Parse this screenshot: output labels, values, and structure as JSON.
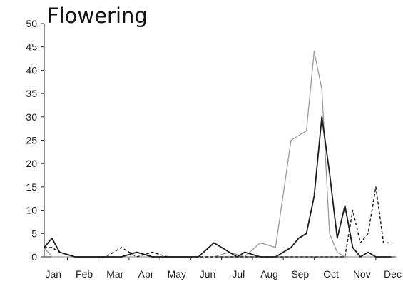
{
  "chart_data": {
    "type": "line",
    "title": "Flowering",
    "xlabel": "",
    "ylabel": "",
    "ylim": [
      0,
      50
    ],
    "yticks": [
      0,
      5,
      10,
      15,
      20,
      25,
      30,
      35,
      40,
      45,
      50
    ],
    "xlim": [
      0,
      22.5
    ],
    "month_labels": [
      {
        "label": "Jan",
        "x": 0.5
      },
      {
        "label": "Feb",
        "x": 2.5
      },
      {
        "label": "Mar",
        "x": 4.5
      },
      {
        "label": "Apr",
        "x": 6.5
      },
      {
        "label": "May",
        "x": 8.5
      },
      {
        "label": "Jun",
        "x": 10.5
      },
      {
        "label": "Jul",
        "x": 12.5
      },
      {
        "label": "Aug",
        "x": 14.5
      },
      {
        "label": "Sep",
        "x": 16.5
      },
      {
        "label": "Oct",
        "x": 18.5
      },
      {
        "label": "Nov",
        "x": 20.5
      },
      {
        "label": "Dec",
        "x": 22.5
      }
    ],
    "grid": false,
    "legend": "none",
    "series": [
      {
        "style": "grey-solid",
        "color": "#9a9a9a",
        "x": [
          0,
          0.5,
          1,
          2,
          3,
          4,
          5,
          6,
          7,
          8,
          9,
          10,
          11,
          12,
          13,
          14,
          15,
          16,
          17,
          17.5,
          18,
          18.5,
          19,
          19.5,
          20,
          20.5,
          21,
          21.5,
          22,
          22.5
        ],
        "y": [
          2,
          0,
          0,
          0,
          0,
          0,
          0,
          0,
          0,
          0,
          0,
          0,
          0,
          1,
          0,
          3,
          2,
          25,
          27,
          44,
          36,
          5,
          1,
          0,
          0,
          0,
          0,
          0,
          0,
          0
        ]
      },
      {
        "style": "black-solid",
        "color": "#1a1a1a",
        "x": [
          0,
          0.5,
          1,
          2,
          3,
          4,
          5,
          6,
          7,
          8,
          9,
          10,
          11,
          12,
          12.5,
          13,
          14,
          15,
          16,
          16.5,
          17,
          17.5,
          18,
          18.5,
          19,
          19.5,
          20,
          20.5,
          21,
          21.5,
          22,
          22.5
        ],
        "y": [
          2,
          4,
          1,
          0,
          0,
          0,
          0,
          1,
          0,
          0,
          0,
          0,
          3,
          1,
          0,
          1,
          0,
          0,
          2,
          4,
          5,
          13,
          30,
          18,
          4,
          11,
          2,
          0,
          1,
          0,
          0,
          0
        ]
      },
      {
        "style": "black-dashed",
        "color": "#1a1a1a",
        "x": [
          0,
          0.5,
          1,
          2,
          3,
          4,
          5,
          6,
          7,
          8,
          9,
          10,
          11,
          12,
          13,
          14,
          15,
          16,
          17,
          18,
          18.5,
          19,
          19.5,
          20,
          20.5,
          21,
          21.5,
          22,
          22.5
        ],
        "y": [
          2,
          2,
          1,
          0,
          0,
          0,
          2,
          0,
          1,
          0,
          0,
          0,
          0,
          0,
          0,
          0,
          0,
          0,
          0,
          0,
          0,
          0,
          0,
          10,
          3,
          5,
          15,
          3,
          3
        ]
      }
    ]
  }
}
